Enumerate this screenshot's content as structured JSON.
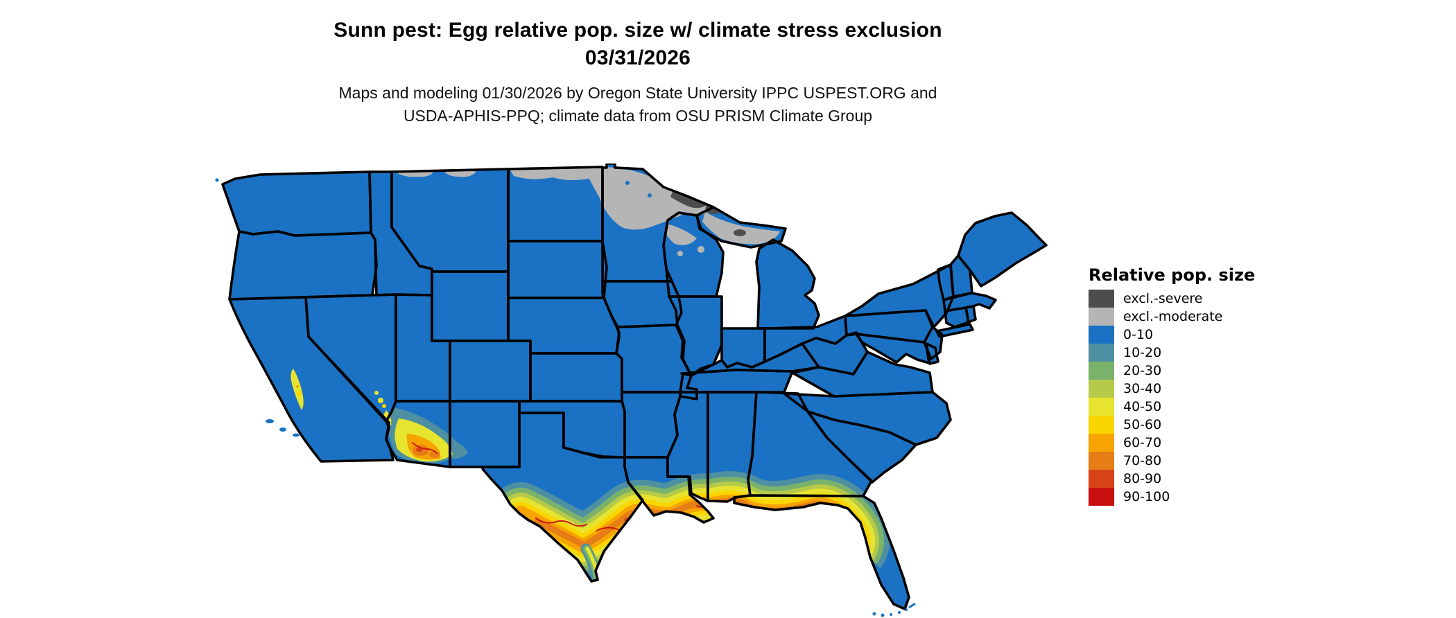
{
  "title": {
    "line1": "Sunn pest: Egg relative pop. size w/ climate stress exclusion",
    "line2": "03/31/2026"
  },
  "subtitle": {
    "line1": "Maps and modeling 01/30/2026 by Oregon State University IPPC USPEST.ORG and",
    "line2": "USDA-APHIS-PPQ; climate data from OSU PRISM Climate Group"
  },
  "legend": {
    "title": "Relative pop. size",
    "items": [
      {
        "label": "excl.-severe",
        "color": "#4d4d4d"
      },
      {
        "label": "excl.-moderate",
        "color": "#b5b5b5"
      },
      {
        "label": "0-10",
        "color": "#1b72c4"
      },
      {
        "label": "10-20",
        "color": "#4e90a2"
      },
      {
        "label": "20-30",
        "color": "#7ab26b"
      },
      {
        "label": "30-40",
        "color": "#b6ca4a"
      },
      {
        "label": "40-50",
        "color": "#e7e42f"
      },
      {
        "label": "50-60",
        "color": "#fbd500"
      },
      {
        "label": "60-70",
        "color": "#f5a400"
      },
      {
        "label": "70-80",
        "color": "#e67d17"
      },
      {
        "label": "80-90",
        "color": "#d84315"
      },
      {
        "label": "90-100",
        "color": "#c90f0f"
      }
    ]
  },
  "map": {
    "region": "Contiguous United States",
    "base_category": "0-10",
    "border_color": "#000000",
    "background_color": "#ffffff",
    "exclusion_moderate_areas": "northern North Dakota, northern Minnesota, northern Wisconsin, upper Michigan",
    "exclusion_severe_areas": "northeastern Minnesota arrowhead, upper Michigan patches",
    "high_value_areas": "Gulf Coast of Texas and Louisiana, coastal Mississippi/Alabama, northern Florida, southwestern Arizona, southeastern California"
  }
}
